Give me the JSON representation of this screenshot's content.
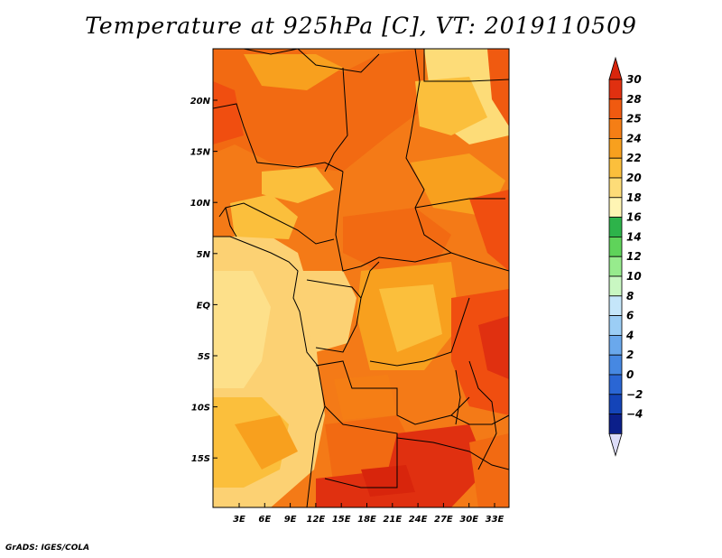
{
  "title": "Temperature at 925hPa [C], VT: 2019110509",
  "credit": "GrADS: IGES/COLA",
  "map": {
    "lat_labels": [
      "20N",
      "15N",
      "10N",
      "5N",
      "EQ",
      "5S",
      "10S",
      "15S"
    ],
    "lon_labels": [
      "3E",
      "6E",
      "9E",
      "12E",
      "15E",
      "18E",
      "21E",
      "24E",
      "27E",
      "30E",
      "33E"
    ]
  },
  "colorbar": {
    "labels": [
      "30",
      "28",
      "25",
      "24",
      "22",
      "20",
      "18",
      "16",
      "14",
      "12",
      "10",
      "8",
      "6",
      "4",
      "2",
      "0",
      "−2",
      "−4"
    ],
    "colors": [
      "#e03010",
      "#f05a10",
      "#f57e15",
      "#f8a01e",
      "#fbbf3c",
      "#fddc78",
      "#fff5b4",
      "#2db34a",
      "#5fd35a",
      "#97eb8d",
      "#c9f7c2",
      "#c5e6fa",
      "#9bcdf5",
      "#6aa8ec",
      "#4688e2",
      "#2a66d4",
      "#1444b8",
      "#0b1f8a"
    ],
    "top_arrow_color": "#d8250c",
    "bottom_arrow_color": "#dcdcf8"
  }
}
